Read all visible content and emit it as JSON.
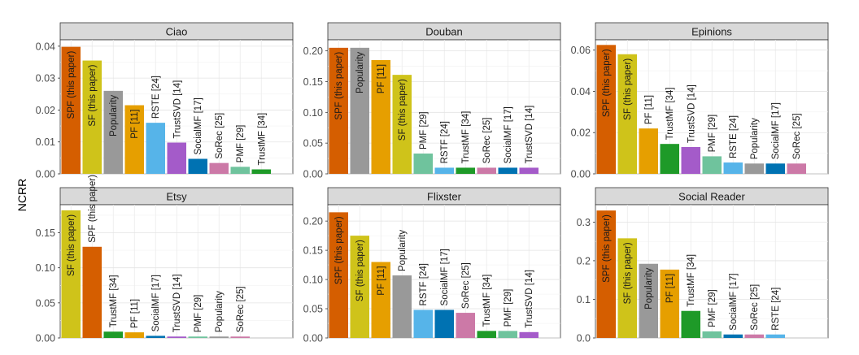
{
  "figure": {
    "ylabel": "NCRR"
  },
  "colors": {
    "SPF (this paper)": "#D55E00",
    "SF (this paper)": "#CFC31A",
    "Popularity": "#999999",
    "PF [11]": "#E69F00",
    "RSTE [24]": "#56B4E9",
    "TrustSVD [14]": "#A45BC9",
    "SocialMF [17]": "#0072B2",
    "SoRec [25]": "#CC79A7",
    "PMF [29]": "#6FC39D",
    "TrustMF [34]": "#1E9A28",
    "RSTF [24]": "#56B4E9"
  },
  "chart_data": [
    {
      "type": "bar",
      "title": "Ciao",
      "ylim": [
        0,
        0.042
      ],
      "yticks": [
        "0.00",
        "0.01",
        "0.02",
        "0.03",
        "0.04"
      ],
      "grid": true,
      "categories": [
        "SPF (this paper)",
        "SF (this paper)",
        "Popularity",
        "PF [11]",
        "RSTE [24]",
        "TrustSVD [14]",
        "SocialMF [17]",
        "SoRec [25]",
        "PMF [29]",
        "TrustMF [34]"
      ],
      "values": [
        0.0398,
        0.0355,
        0.026,
        0.0215,
        0.016,
        0.0098,
        0.0047,
        0.0034,
        0.0022,
        0.0014
      ]
    },
    {
      "type": "bar",
      "title": "Douban",
      "ylim": [
        0,
        0.218
      ],
      "yticks": [
        "0.00",
        "0.05",
        "0.10",
        "0.15",
        "0.20"
      ],
      "grid": true,
      "categories": [
        "SPF (this paper)",
        "Popularity",
        "PF [11]",
        "SF (this paper)",
        "PMF [29]",
        "RSTF [24]",
        "TrustMF [34]",
        "SoRec [25]",
        "SocialMF [17]",
        "TrustSVD [14]"
      ],
      "values": [
        0.205,
        0.205,
        0.185,
        0.161,
        0.033,
        0.01,
        0.01,
        0.01,
        0.01,
        0.01
      ]
    },
    {
      "type": "bar",
      "title": "Epinions",
      "ylim": [
        0,
        0.065
      ],
      "yticks": [
        "0.00",
        "0.02",
        "0.04",
        "0.06"
      ],
      "grid": true,
      "categories": [
        "SPF (this paper)",
        "SF (this paper)",
        "PF [11]",
        "TrustMF [34]",
        "TrustSVD [14]",
        "PMF [29]",
        "RSTE [24]",
        "Popularity",
        "SocialMF [17]",
        "SoRec [25]"
      ],
      "values": [
        0.0625,
        0.058,
        0.022,
        0.0145,
        0.013,
        0.0085,
        0.0055,
        0.005,
        0.005,
        0.005
      ]
    },
    {
      "type": "bar",
      "title": "Etsy",
      "ylim": [
        0,
        0.19
      ],
      "yticks": [
        "0.00",
        "0.05",
        "0.10",
        "0.15"
      ],
      "grid": true,
      "categories": [
        "SF (this paper)",
        "SPF (this paper)",
        "TrustMF [34]",
        "PF [11]",
        "SocialMF [17]",
        "TrustSVD [14]",
        "PMF [29]",
        "Popularity",
        "SoRec [25]"
      ],
      "values": [
        0.182,
        0.13,
        0.009,
        0.008,
        0.003,
        0.002,
        0.002,
        0.002,
        0.002
      ]
    },
    {
      "type": "bar",
      "title": "Flixster",
      "ylim": [
        0,
        0.228
      ],
      "yticks": [
        "0.00",
        "0.05",
        "0.10",
        "0.15",
        "0.20"
      ],
      "grid": true,
      "categories": [
        "SPF (this paper)",
        "SF (this paper)",
        "PF [11]",
        "Popularity",
        "RSTF [24]",
        "SocialMF [17]",
        "SoRec [25]",
        "TrustMF [34]",
        "PMF [29]",
        "TrustSVD [14]"
      ],
      "values": [
        0.215,
        0.175,
        0.13,
        0.107,
        0.048,
        0.048,
        0.043,
        0.012,
        0.012,
        0.01
      ]
    },
    {
      "type": "bar",
      "title": "Social Reader",
      "ylim": [
        0,
        0.345
      ],
      "yticks": [
        "0.0",
        "0.1",
        "0.2",
        "0.3"
      ],
      "grid": true,
      "categories": [
        "SPF (this paper)",
        "SF (this paper)",
        "Popularity",
        "PF [11]",
        "TrustMF [34]",
        "PMF [29]",
        "SocialMF [17]",
        "SoRec [25]",
        "RSTE [24]"
      ],
      "values": [
        0.33,
        0.258,
        0.192,
        0.177,
        0.07,
        0.017,
        0.009,
        0.009,
        0.009
      ]
    }
  ]
}
